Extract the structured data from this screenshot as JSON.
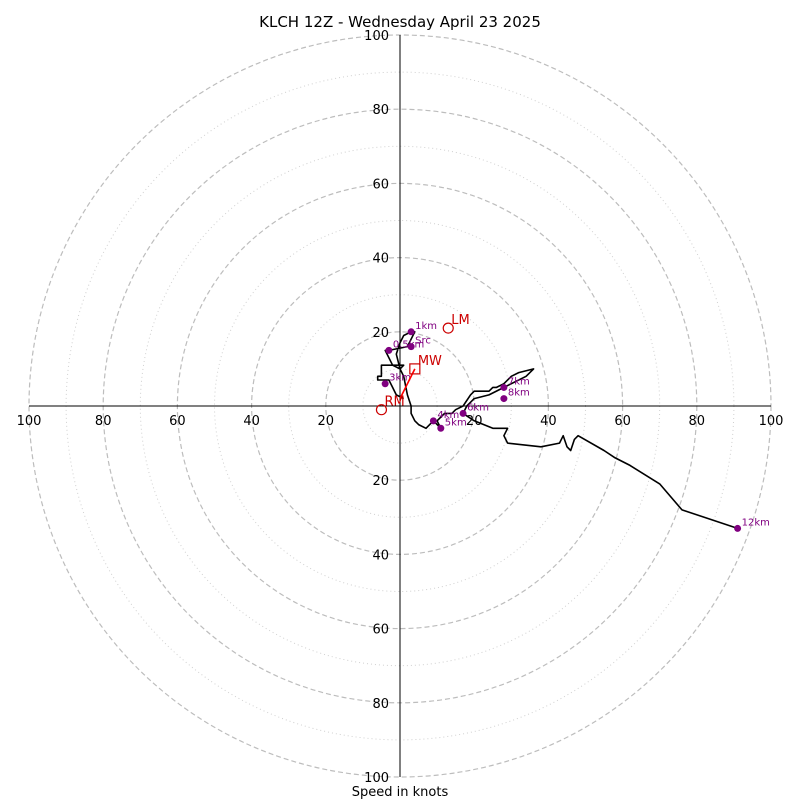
{
  "chart_data": {
    "type": "hodograph",
    "title": "KLCH 12Z - Wednesday April 23 2025",
    "xlabel": "Speed in knots",
    "range": [
      -100,
      100
    ],
    "dashed_rings": [
      20,
      40,
      60,
      80,
      100
    ],
    "dotted_rings": [
      10,
      30,
      50,
      70,
      90
    ],
    "tick_values": [
      20,
      40,
      60,
      80,
      100
    ],
    "x_tick_labels": [
      "100",
      "80",
      "60",
      "40",
      "20",
      "20",
      "40",
      "60",
      "80",
      "100"
    ],
    "y_tick_labels": [
      "100",
      "80",
      "60",
      "40",
      "20",
      "20",
      "40",
      "60",
      "80",
      "100"
    ],
    "wind_trace": [
      [
        1,
        2
      ],
      [
        -1,
        3
      ],
      [
        -2,
        5
      ],
      [
        -3,
        7
      ],
      [
        -6,
        7
      ],
      [
        -6,
        8
      ],
      [
        -5,
        8
      ],
      [
        -5,
        11
      ],
      [
        -2,
        11
      ],
      [
        0,
        10
      ],
      [
        -1,
        14
      ],
      [
        0,
        17
      ],
      [
        1,
        19
      ],
      [
        3,
        20
      ],
      [
        4,
        20
      ],
      [
        3,
        18
      ],
      [
        2,
        16
      ],
      [
        -3,
        15
      ],
      [
        -4,
        15
      ],
      [
        -2,
        11
      ],
      [
        1,
        11
      ],
      [
        0,
        10
      ],
      [
        1,
        8
      ],
      [
        2,
        3
      ],
      [
        3,
        0
      ],
      [
        3,
        -2
      ],
      [
        4,
        -4
      ],
      [
        5,
        -5
      ],
      [
        7,
        -6
      ],
      [
        9,
        -4
      ],
      [
        11,
        -6
      ],
      [
        10,
        -4
      ],
      [
        12,
        -2
      ],
      [
        14,
        -2
      ],
      [
        15,
        -1
      ],
      [
        17,
        0
      ],
      [
        19,
        3
      ],
      [
        20,
        4
      ],
      [
        24,
        4
      ],
      [
        25,
        5
      ],
      [
        26,
        5
      ],
      [
        28,
        6
      ],
      [
        30,
        8
      ],
      [
        32,
        9
      ],
      [
        36,
        10
      ],
      [
        34,
        8
      ],
      [
        28,
        5
      ],
      [
        24,
        3
      ],
      [
        20,
        2
      ],
      [
        19,
        1
      ],
      [
        18,
        0
      ],
      [
        17,
        -2
      ],
      [
        20,
        -4
      ],
      [
        25,
        -6
      ],
      [
        29,
        -6
      ],
      [
        28,
        -8
      ],
      [
        29,
        -10
      ],
      [
        38,
        -11
      ],
      [
        43,
        -10
      ],
      [
        44,
        -8
      ],
      [
        45,
        -11
      ],
      [
        46,
        -12
      ],
      [
        47,
        -9
      ],
      [
        48,
        -8
      ],
      [
        55,
        -12
      ],
      [
        58,
        -14
      ],
      [
        62,
        -16
      ],
      [
        70,
        -21
      ],
      [
        76,
        -28
      ],
      [
        82,
        -30
      ],
      [
        91,
        -33
      ]
    ],
    "height_markers": [
      {
        "label": "0.5km",
        "u": -3,
        "v": 15
      },
      {
        "label": "1km",
        "u": 3,
        "v": 20
      },
      {
        "label": "Src",
        "u": 3,
        "v": 16
      },
      {
        "label": "3km",
        "u": -4,
        "v": 6
      },
      {
        "label": "4km",
        "u": 9,
        "v": -4
      },
      {
        "label": "5km",
        "u": 11,
        "v": -6
      },
      {
        "label": "6km",
        "u": 17,
        "v": -2
      },
      {
        "label": "7km",
        "u": 28,
        "v": 5
      },
      {
        "label": "8km",
        "u": 28,
        "v": 2
      },
      {
        "label": "12km",
        "u": 91,
        "v": -33
      }
    ],
    "storm_motions": [
      {
        "label": "LM",
        "u": 13,
        "v": 21,
        "marker": "circle"
      },
      {
        "label": "MW",
        "u": 4,
        "v": 10,
        "marker": "square"
      },
      {
        "label": "RM",
        "u": -5,
        "v": -1,
        "marker": "circle"
      }
    ],
    "shear_vector": {
      "from": [
        0,
        2
      ],
      "to": [
        4,
        10
      ]
    },
    "colors": {
      "trace": "#000000",
      "height_marker": "#800080",
      "storm_motion": "#cc0000",
      "shear_vector": "#ff0000",
      "ring": "#bdbdbd"
    }
  }
}
